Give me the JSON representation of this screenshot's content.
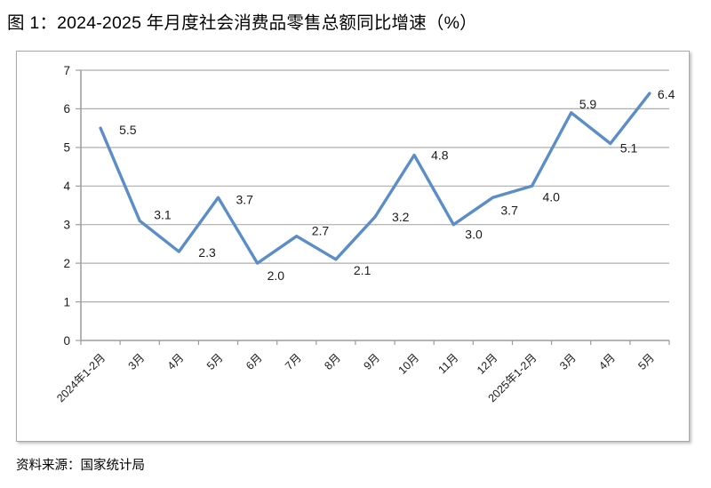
{
  "figure": {
    "title": "图 1：2024-2025 年月度社会消费品零售总额同比增速（%）",
    "source_note": "资料来源：国家统计局"
  },
  "chart_data": {
    "type": "line",
    "title": "2024-2025 年月度社会消费品零售总额同比增速（%）",
    "categories": [
      "2024年1-2月",
      "3月",
      "4月",
      "5月",
      "6月",
      "7月",
      "8月",
      "9月",
      "10月",
      "11月",
      "12月",
      "2025年1-2月",
      "3月",
      "4月",
      "5月"
    ],
    "values": [
      5.5,
      3.1,
      2.3,
      3.7,
      2.0,
      2.7,
      2.1,
      3.2,
      4.8,
      3.0,
      3.7,
      4.0,
      5.9,
      5.1,
      6.4
    ],
    "xlabel": "",
    "ylabel": "",
    "ylim": [
      0,
      7
    ],
    "ytick_step": 1,
    "grid": true,
    "legend_position": "none",
    "data_labels": true,
    "colors": {
      "line": "#5b8dc8",
      "gridline": "#adadad",
      "axis": "#9c9c9c",
      "tick_label": "#1a1a1a",
      "data_label": "#1a1a1a"
    }
  }
}
